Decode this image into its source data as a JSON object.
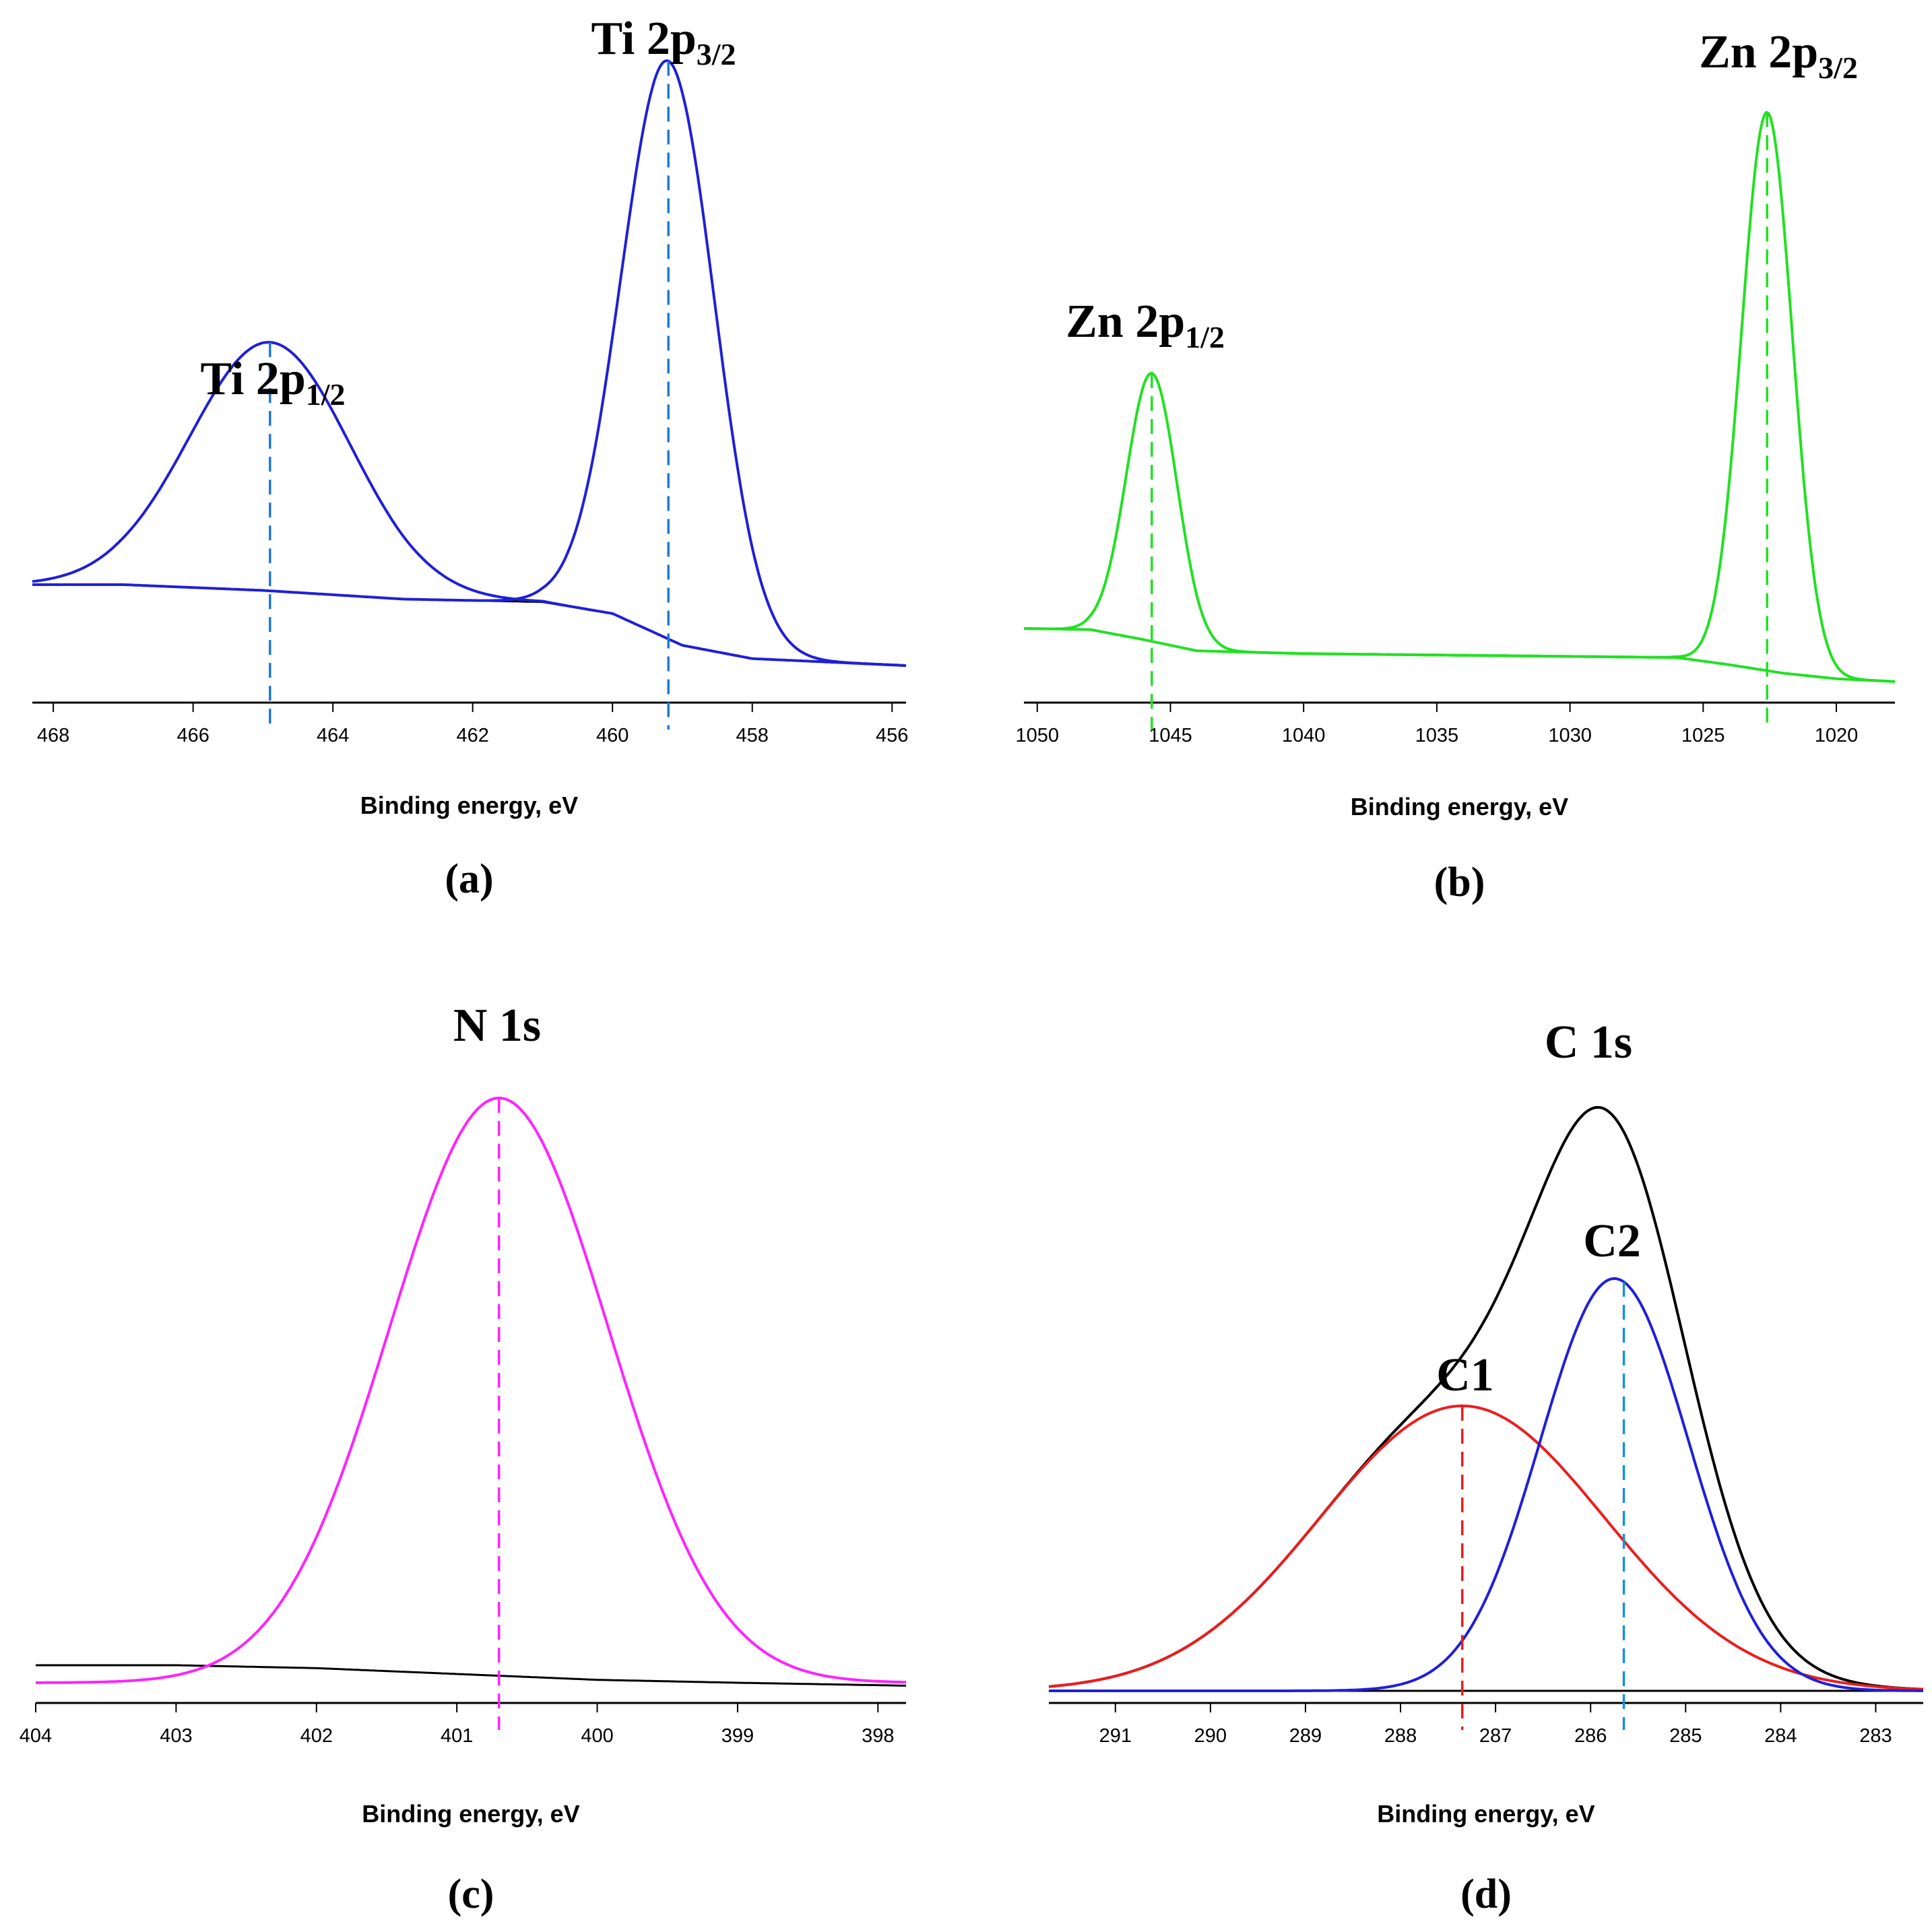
{
  "chart_data": [
    {
      "type": "line",
      "panel_label": "(a)",
      "xlabel": "Binding energy, eV",
      "ylabel": "",
      "xlim": [
        468.3,
        455.8
      ],
      "xticks": [
        468,
        466,
        464,
        462,
        460,
        458,
        456
      ],
      "ylim": [
        0,
        1
      ],
      "background": [
        [
          468.3,
          0.14
        ],
        [
          467,
          0.14
        ],
        [
          465,
          0.13
        ],
        [
          463,
          0.115
        ],
        [
          461,
          0.11
        ],
        [
          460,
          0.09
        ],
        [
          459,
          0.035
        ],
        [
          458,
          0.012
        ],
        [
          455.8,
          0.0
        ]
      ],
      "series": [
        {
          "name": "Ti 2p1/2",
          "color": "#1f1fd8",
          "shape": "gaussian",
          "center": 464.9,
          "height": 0.43,
          "sigma": 1.15,
          "baseline": true
        },
        {
          "name": "Ti 2p3/2",
          "color": "#1f1fd8",
          "shape": "gaussian",
          "center": 459.2,
          "height": 1.0,
          "sigma": 0.66,
          "baseline": true
        }
      ],
      "markers": [
        {
          "x": 464.9,
          "color": "#1f78d8",
          "label_main": "Ti 2p",
          "label_sub": "1/2"
        },
        {
          "x": 459.2,
          "color": "#1f78d8",
          "label_main": "Ti 2p",
          "label_sub": "3/2"
        }
      ]
    },
    {
      "type": "line",
      "panel_label": "(b)",
      "xlabel": "Binding energy, eV",
      "ylabel": "",
      "xlim": [
        1050.5,
        1017.8
      ],
      "xticks": [
        1050,
        1045,
        1040,
        1035,
        1030,
        1025,
        1020
      ],
      "ylim": [
        0,
        1
      ],
      "background": [
        [
          1050.5,
          0.07
        ],
        [
          1048,
          0.068
        ],
        [
          1046,
          0.05
        ],
        [
          1044,
          0.03
        ],
        [
          1040,
          0.025
        ],
        [
          1030,
          0.02
        ],
        [
          1026,
          0.018
        ],
        [
          1024,
          0.005
        ],
        [
          1022,
          -0.01
        ],
        [
          1020,
          -0.02
        ],
        [
          1017.8,
          -0.025
        ]
      ],
      "series": [
        {
          "name": "Zn 2p1/2",
          "color": "#22e022",
          "shape": "gaussian",
          "center": 1045.7,
          "height": 0.48,
          "sigma": 0.95,
          "baseline": true
        },
        {
          "name": "Zn 2p3/2",
          "color": "#22e022",
          "shape": "gaussian",
          "center": 1022.6,
          "height": 1.0,
          "sigma": 0.95,
          "baseline": true
        }
      ],
      "markers": [
        {
          "x": 1045.7,
          "color": "#22e022",
          "label_main": "Zn 2p",
          "label_sub": "1/2"
        },
        {
          "x": 1022.6,
          "color": "#22e022",
          "label_main": "Zn 2p",
          "label_sub": "3/2"
        }
      ]
    },
    {
      "type": "line",
      "panel_label": "(c)",
      "xlabel": "Binding energy, eV",
      "ylabel": "",
      "xlim": [
        404,
        397.8
      ],
      "xticks": [
        404,
        403,
        402,
        401,
        400,
        399,
        398
      ],
      "ylim": [
        0,
        1
      ],
      "background": [
        [
          404,
          0.03
        ],
        [
          403,
          0.03
        ],
        [
          402,
          0.025
        ],
        [
          401,
          0.015
        ],
        [
          400,
          0.005
        ],
        [
          399,
          0.0
        ],
        [
          397.8,
          -0.005
        ]
      ],
      "series": [
        {
          "name": "N 1s",
          "color": "#ff22ff",
          "shape": "gaussian",
          "center": 400.7,
          "height": 1.0,
          "sigma": 0.78,
          "baseline": false
        }
      ],
      "markers": [
        {
          "x": 400.7,
          "color": "#ff22ff",
          "label_main": "N 1s",
          "label_sub": ""
        }
      ]
    },
    {
      "type": "line",
      "panel_label": "(d)",
      "xlabel": "Binding energy, eV",
      "ylabel": "",
      "xlim": [
        291.7,
        282.5
      ],
      "xticks": [
        291,
        290,
        289,
        288,
        287,
        286,
        285,
        284,
        283
      ],
      "ylim": [
        0,
        1
      ],
      "background": [
        [
          291.7,
          0.0
        ],
        [
          282.5,
          0.0
        ]
      ],
      "series": [
        {
          "name": "C 1s",
          "color": "#000000",
          "shape": "sum",
          "baseline": false
        },
        {
          "name": "C1",
          "color": "#ee1c1c",
          "shape": "gaussian",
          "center": 287.35,
          "height": 0.47,
          "sigma": 1.5,
          "baseline": false
        },
        {
          "name": "C2",
          "color": "#1f1fd8",
          "shape": "gaussian",
          "center": 285.75,
          "height": 0.68,
          "sigma": 0.78,
          "baseline": false
        }
      ],
      "markers": [
        {
          "x": 286.0,
          "color": "none",
          "label_main": "C 1s",
          "label_sub": ""
        },
        {
          "x": 287.35,
          "color": "#ee1c1c",
          "label_main": "C1",
          "label_sub": ""
        },
        {
          "x": 285.65,
          "color": "#1a8fd8",
          "label_main": "C2",
          "label_sub": ""
        }
      ]
    }
  ]
}
